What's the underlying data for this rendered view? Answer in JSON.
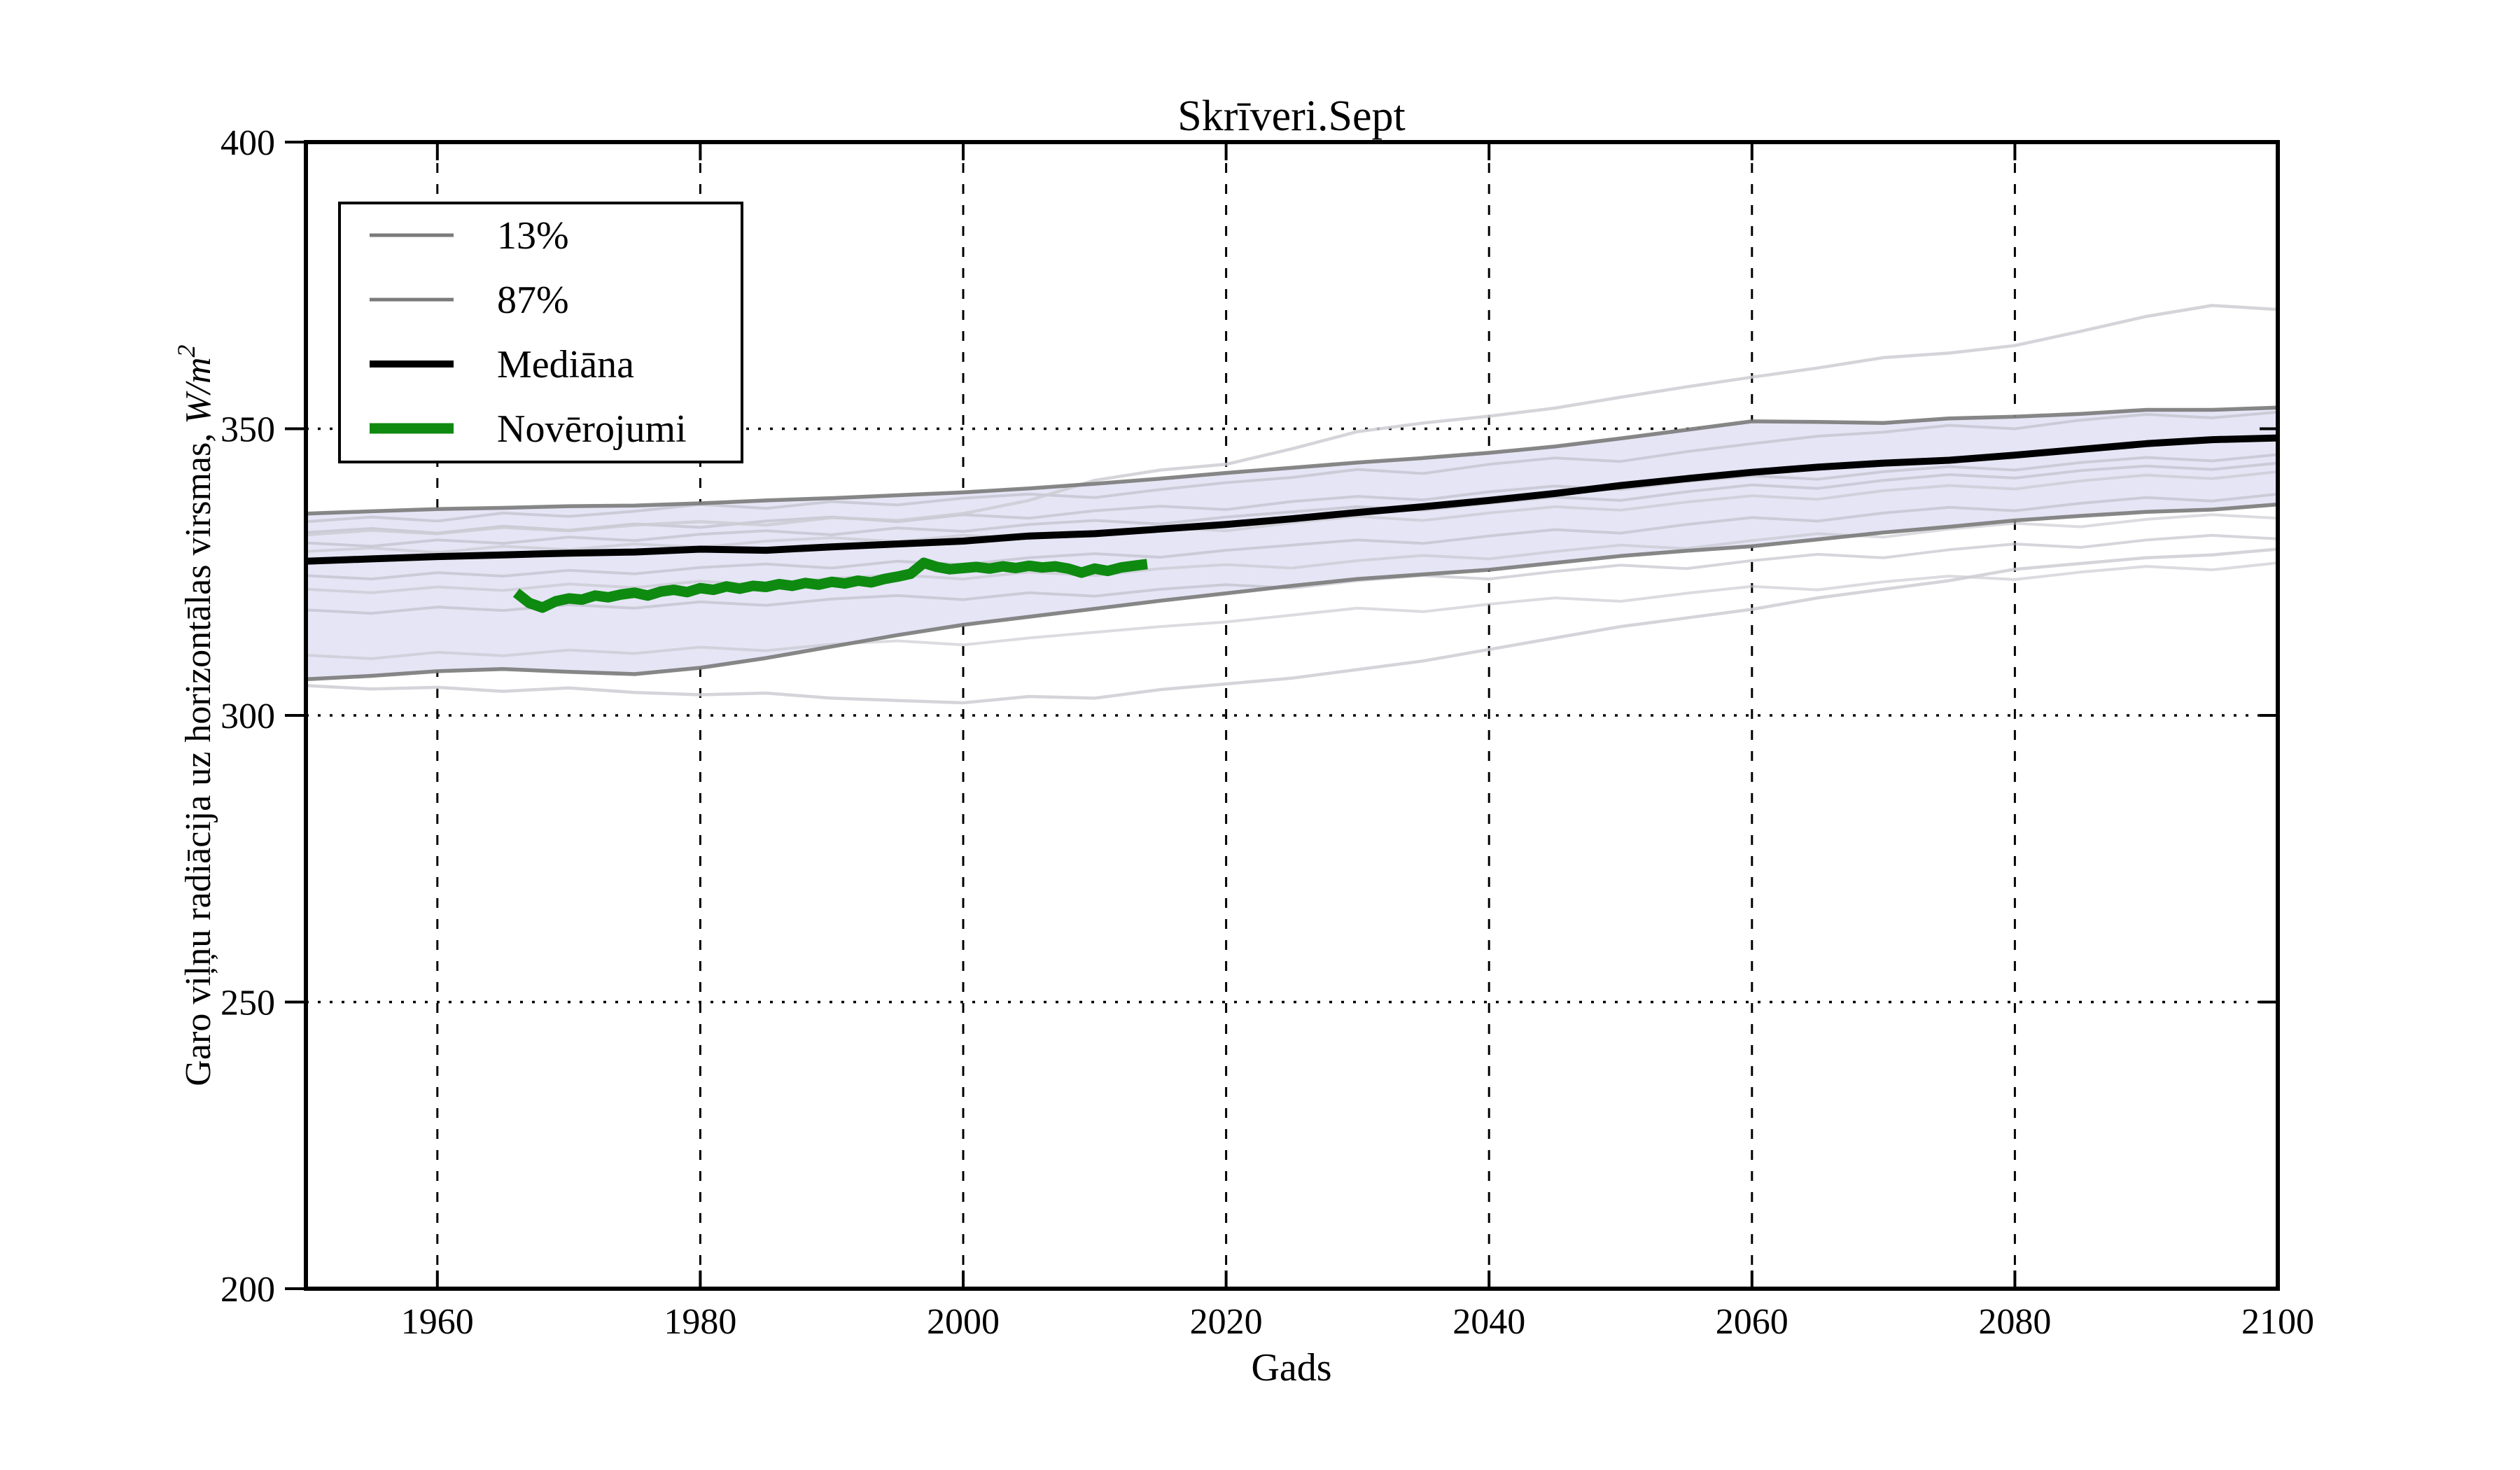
{
  "colors": {
    "background": "#ffffff",
    "band_fill": "#e5e5f6",
    "percentile_line": "#7a7a7a",
    "ensemble_line": "#b9b9c4",
    "outlier_line": "#cdcdd4",
    "median_line": "#000000",
    "observations_line": "#0e8a10",
    "grid_line": "#000000",
    "frame_line": "#000000"
  },
  "legend": {
    "position": "upper left",
    "items": [
      {
        "label": "13%",
        "color": "#7a7a7a",
        "lw": 5
      },
      {
        "label": "87%",
        "color": "#7a7a7a",
        "lw": 5
      },
      {
        "label": "Mediāna",
        "color": "#000000",
        "lw": 10
      },
      {
        "label": "Novērojumi",
        "color": "#0e8a10",
        "lw": 15
      }
    ]
  },
  "chart_data": {
    "type": "line",
    "title": "Skrīveri.Sept",
    "xlabel": "Gads",
    "ylabel": "Garo viļņu radiācija uz horizontālas virsmas, W/m²",
    "ylabel_parts": {
      "text": "Garo viļņu radiācija uz horizontālas virsmas, ",
      "math": "W/m",
      "sup": "2"
    },
    "xlim": [
      1950,
      2100
    ],
    "ylim": [
      200,
      400
    ],
    "x_ticks": [
      1960,
      1980,
      2000,
      2020,
      2040,
      2060,
      2080,
      2100
    ],
    "y_ticks": [
      200,
      250,
      300,
      350,
      400
    ],
    "grid": true,
    "x": [
      1950,
      1955,
      1960,
      1965,
      1970,
      1975,
      1980,
      1985,
      1990,
      1995,
      2000,
      2005,
      2010,
      2015,
      2020,
      2025,
      2030,
      2035,
      2040,
      2045,
      2050,
      2055,
      2060,
      2065,
      2070,
      2075,
      2080,
      2085,
      2090,
      2095,
      2100
    ],
    "series": [
      {
        "name": "13%",
        "role": "lower",
        "color": "#7a7a7a",
        "lw": 5.5,
        "opacity": 0.9,
        "values": [
          306.3,
          306.9,
          307.7,
          308.1,
          307.6,
          307.2,
          308.3,
          310.0,
          312.0,
          314.0,
          315.8,
          317.2,
          318.6,
          320.0,
          321.3,
          322.6,
          323.8,
          324.6,
          325.4,
          326.6,
          327.8,
          328.7,
          329.5,
          330.7,
          331.9,
          332.9,
          334.0,
          334.8,
          335.5,
          335.9,
          336.8
        ]
      },
      {
        "name": "87%",
        "role": "upper",
        "color": "#7a7a7a",
        "lw": 5.5,
        "opacity": 0.9,
        "values": [
          335.2,
          335.6,
          336.0,
          336.2,
          336.5,
          336.6,
          337.0,
          337.5,
          337.9,
          338.4,
          338.9,
          339.6,
          340.4,
          341.3,
          342.3,
          343.2,
          344.1,
          344.9,
          345.8,
          346.9,
          348.3,
          349.8,
          351.3,
          351.2,
          351.0,
          351.8,
          352.1,
          352.6,
          353.3,
          353.3,
          353.7
        ]
      },
      {
        "name": "Mediāna",
        "role": "median",
        "color": "#000000",
        "lw": 10,
        "opacity": 1,
        "values": [
          326.9,
          327.3,
          327.7,
          328.0,
          328.3,
          328.5,
          329.0,
          328.8,
          329.4,
          329.9,
          330.4,
          331.3,
          331.7,
          332.5,
          333.3,
          334.3,
          335.4,
          336.4,
          337.5,
          338.7,
          340.1,
          341.3,
          342.4,
          343.3,
          344.0,
          344.5,
          345.4,
          346.4,
          347.4,
          348.1,
          348.4
        ]
      },
      {
        "name": "ensemble-1",
        "role": "ensemble",
        "color": "#b9b9c4",
        "lw": 4,
        "opacity": 0.6,
        "values": [
          333.8,
          334.6,
          333.9,
          335.3,
          334.7,
          335.6,
          336.8,
          336.1,
          337.3,
          336.7,
          337.9,
          338.6,
          338.0,
          339.4,
          340.6,
          341.5,
          342.9,
          342.2,
          343.8,
          344.9,
          344.3,
          346.0,
          347.4,
          348.7,
          349.4,
          350.6,
          350.0,
          351.5,
          352.5,
          351.9,
          352.9
        ]
      },
      {
        "name": "ensemble-2",
        "role": "ensemble",
        "color": "#b9b9c4",
        "lw": 4,
        "opacity": 0.6,
        "values": [
          330.1,
          329.5,
          330.6,
          330.0,
          331.1,
          330.5,
          331.6,
          332.2,
          331.5,
          332.7,
          332.1,
          333.3,
          334.0,
          333.4,
          334.6,
          335.5,
          336.4,
          335.8,
          337.0,
          338.1,
          337.5,
          339.0,
          340.2,
          339.6,
          341.0,
          342.0,
          341.4,
          342.7,
          343.5,
          342.9,
          344.0
        ]
      },
      {
        "name": "ensemble-3",
        "role": "ensemble",
        "color": "#c3c3cc",
        "lw": 4,
        "opacity": 0.6,
        "values": [
          328.6,
          329.2,
          328.4,
          329.5,
          328.9,
          329.9,
          329.3,
          330.4,
          331.0,
          330.3,
          331.4,
          330.8,
          332.0,
          332.8,
          332.2,
          333.6,
          334.7,
          334.0,
          335.3,
          336.4,
          335.8,
          337.2,
          338.3,
          337.7,
          339.2,
          340.1,
          339.5,
          340.9,
          341.9,
          341.3,
          342.5
        ]
      },
      {
        "name": "ensemble-4",
        "role": "ensemble",
        "color": "#b9b9c4",
        "lw": 4,
        "opacity": 0.6,
        "values": [
          331.9,
          332.6,
          331.8,
          333.0,
          332.3,
          333.4,
          332.8,
          333.9,
          334.6,
          333.8,
          335.0,
          334.4,
          335.7,
          336.5,
          335.9,
          337.3,
          338.2,
          337.6,
          339.0,
          340.0,
          339.4,
          340.8,
          341.8,
          341.2,
          342.5,
          343.4,
          342.8,
          344.1,
          345.0,
          344.4,
          345.5
        ]
      },
      {
        "name": "ensemble-5",
        "role": "ensemble",
        "color": "#b9b9c4",
        "lw": 4,
        "opacity": 0.6,
        "values": [
          324.4,
          323.8,
          324.9,
          324.3,
          325.3,
          324.7,
          325.8,
          326.4,
          325.7,
          326.9,
          326.3,
          327.5,
          328.2,
          327.6,
          328.8,
          329.7,
          330.6,
          330.0,
          331.3,
          332.4,
          331.8,
          333.3,
          334.5,
          333.9,
          335.3,
          336.3,
          335.7,
          337.0,
          338.0,
          337.4,
          338.6
        ]
      },
      {
        "name": "ensemble-6",
        "role": "ensemble",
        "color": "#c3c3cc",
        "lw": 4,
        "opacity": 0.6,
        "values": [
          322.0,
          321.4,
          322.4,
          321.8,
          322.9,
          322.3,
          323.4,
          322.8,
          323.9,
          324.5,
          323.8,
          325.0,
          324.4,
          325.6,
          326.3,
          325.7,
          327.0,
          327.9,
          327.3,
          328.6,
          329.7,
          329.1,
          330.5,
          331.7,
          331.1,
          332.5,
          333.5,
          332.9,
          334.2,
          335.0,
          334.4
        ]
      },
      {
        "name": "ensemble-7",
        "role": "ensemble",
        "color": "#b9b9c4",
        "lw": 4,
        "opacity": 0.6,
        "values": [
          318.4,
          317.8,
          318.9,
          318.3,
          319.3,
          318.7,
          319.8,
          319.2,
          320.3,
          320.9,
          320.2,
          321.4,
          320.8,
          322.0,
          322.8,
          322.2,
          323.5,
          324.4,
          323.8,
          325.1,
          326.2,
          325.6,
          327.0,
          328.1,
          327.5,
          328.9,
          329.9,
          329.3,
          330.6,
          331.4,
          330.8
        ]
      },
      {
        "name": "ensemble-8",
        "role": "ensemble",
        "color": "#c3c3cc",
        "lw": 4,
        "opacity": 0.6,
        "values": [
          310.5,
          309.9,
          311.0,
          310.4,
          311.4,
          310.8,
          311.9,
          311.3,
          312.4,
          313.0,
          312.3,
          313.5,
          314.5,
          315.5,
          316.3,
          317.5,
          318.7,
          318.1,
          319.4,
          320.5,
          319.9,
          321.3,
          322.5,
          321.9,
          323.3,
          324.3,
          323.7,
          325.0,
          326.0,
          325.4,
          326.6
        ]
      },
      {
        "name": "ensemble-high",
        "role": "ensemble",
        "color": "#cdcdd4",
        "lw": 4.5,
        "opacity": 0.85,
        "values": [
          331.5,
          332.3,
          331.7,
          332.8,
          332.2,
          333.2,
          333.8,
          333.2,
          334.5,
          334.0,
          335.2,
          337.5,
          341.0,
          342.8,
          343.8,
          346.5,
          349.5,
          351.0,
          352.2,
          353.6,
          355.5,
          357.3,
          359.0,
          360.6,
          362.4,
          363.2,
          364.5,
          367.0,
          369.6,
          371.5,
          370.8
        ]
      },
      {
        "name": "ensemble-low",
        "role": "ensemble",
        "color": "#cdcdd4",
        "lw": 4.5,
        "opacity": 0.85,
        "values": [
          305.2,
          304.6,
          304.9,
          304.2,
          304.8,
          304.0,
          303.6,
          303.9,
          303.0,
          302.6,
          302.2,
          303.3,
          303.0,
          304.5,
          305.5,
          306.5,
          308.0,
          309.5,
          311.5,
          313.5,
          315.5,
          317.0,
          318.5,
          320.5,
          322.0,
          323.5,
          325.5,
          326.5,
          327.5,
          328.0,
          329.0
        ]
      }
    ],
    "observations": {
      "name": "Novērojumi",
      "role": "observations",
      "color": "#0e8a10",
      "lw": 15,
      "opacity": 1,
      "x": [
        1966,
        1967,
        1968,
        1969,
        1970,
        1971,
        1972,
        1973,
        1974,
        1975,
        1976,
        1977,
        1978,
        1979,
        1980,
        1981,
        1982,
        1983,
        1984,
        1985,
        1986,
        1987,
        1988,
        1989,
        1990,
        1991,
        1992,
        1993,
        1994,
        1995,
        1996,
        1997,
        1998,
        1999,
        2000,
        2001,
        2002,
        2003,
        2004,
        2005,
        2006,
        2007,
        2008,
        2009,
        2010,
        2011,
        2012,
        2013,
        2014
      ],
      "values": [
        321.4,
        319.6,
        318.8,
        319.9,
        320.4,
        320.2,
        320.9,
        320.6,
        321.1,
        321.4,
        320.9,
        321.6,
        321.9,
        321.5,
        322.2,
        321.9,
        322.5,
        322.1,
        322.6,
        322.4,
        322.9,
        322.6,
        323.1,
        322.8,
        323.3,
        323.0,
        323.5,
        323.2,
        323.8,
        324.2,
        324.7,
        326.6,
        325.9,
        325.5,
        325.7,
        325.9,
        325.6,
        326.0,
        325.7,
        326.1,
        325.8,
        326.0,
        325.6,
        324.9,
        325.6,
        325.2,
        325.8,
        326.1,
        326.4
      ]
    }
  }
}
